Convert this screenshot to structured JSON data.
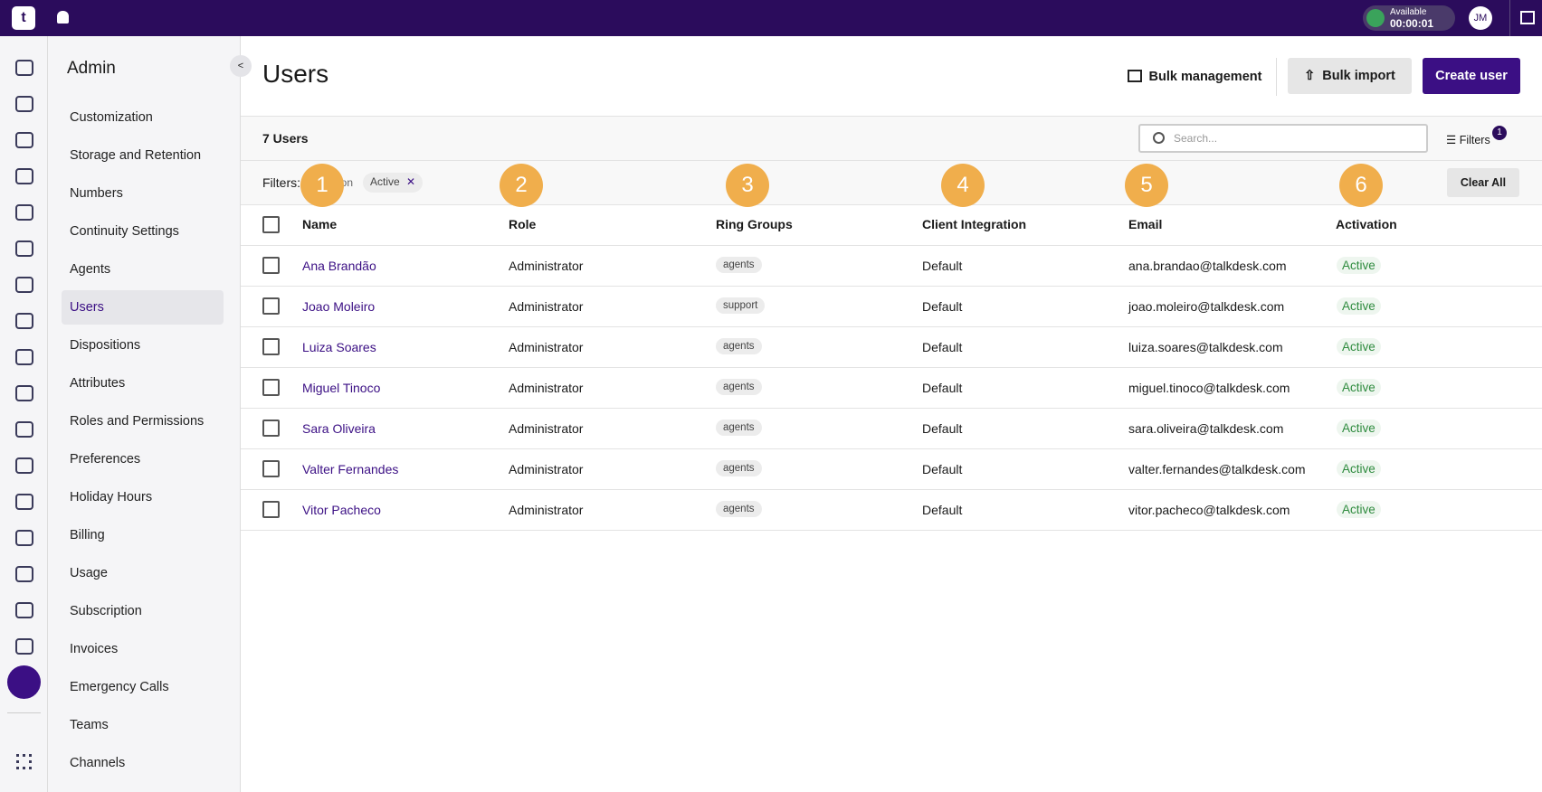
{
  "topbar": {
    "status": "Available",
    "timer": "00:00:01",
    "avatar": "JM"
  },
  "sidebar": {
    "title": "Admin",
    "items": [
      "Customization",
      "Storage and Retention",
      "Numbers",
      "Continuity Settings",
      "Agents",
      "Users",
      "Dispositions",
      "Attributes",
      "Roles and Permissions",
      "Preferences",
      "Holiday Hours",
      "Billing",
      "Usage",
      "Subscription",
      "Invoices",
      "Emergency Calls",
      "Teams",
      "Channels"
    ],
    "active": 5
  },
  "header": {
    "title": "Users",
    "bulk_management": "Bulk management",
    "bulk_import": "Bulk import",
    "create_user": "Create user"
  },
  "toolbar": {
    "count": "7 Users",
    "search_placeholder": "Search...",
    "filters": "Filters",
    "filters_badge": "1"
  },
  "filter_bar": {
    "label": "Filters:",
    "field": "Activation",
    "chip": "Active",
    "clear_all": "Clear All"
  },
  "markers": [
    "1",
    "2",
    "3",
    "4",
    "5",
    "6"
  ],
  "table": {
    "columns": [
      "Name",
      "Role",
      "Ring Groups",
      "Client Integration",
      "Email",
      "Activation"
    ],
    "rows": [
      [
        "Ana Brandão",
        "Administrator",
        "agents",
        "Default",
        "ana.brandao@talkdesk.com",
        "Active"
      ],
      [
        "Joao Moleiro",
        "Administrator",
        "support",
        "Default",
        "joao.moleiro@talkdesk.com",
        "Active"
      ],
      [
        "Luiza Soares",
        "Administrator",
        "agents",
        "Default",
        "luiza.soares@talkdesk.com",
        "Active"
      ],
      [
        "Miguel Tinoco",
        "Administrator",
        "agents",
        "Default",
        "miguel.tinoco@talkdesk.com",
        "Active"
      ],
      [
        "Sara Oliveira",
        "Administrator",
        "agents",
        "Default",
        "sara.oliveira@talkdesk.com",
        "Active"
      ],
      [
        "Valter Fernandes",
        "Administrator",
        "agents",
        "Default",
        "valter.fernandes@talkdesk.com",
        "Active"
      ],
      [
        "Vitor Pacheco",
        "Administrator",
        "agents",
        "Default",
        "vitor.pacheco@talkdesk.com",
        "Active"
      ]
    ]
  }
}
